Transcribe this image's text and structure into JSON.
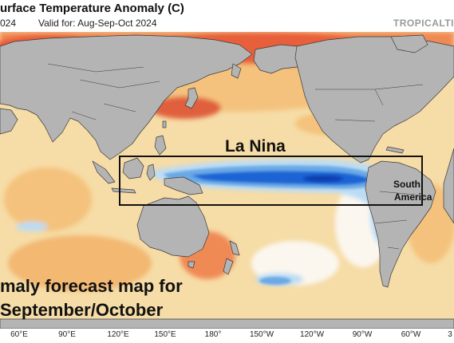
{
  "header": {
    "title": "urface Temperature Anomaly (C)",
    "left_fragment": "024",
    "valid": "Valid for: Aug-Sep-Oct 2024",
    "brand": "TROPICALTI"
  },
  "annotations": {
    "la_nina": "La Nina",
    "south_america_line1": "South",
    "south_america_line2": "America"
  },
  "caption": {
    "line1": "maly forecast map for",
    "line2": "September/October"
  },
  "longitude_labels": [
    "60°E",
    "90°E",
    "120°E",
    "150°E",
    "180°",
    "150°W",
    "120°W",
    "90°W",
    "60°W",
    "3"
  ],
  "colors": {
    "land": "#b4b4b4",
    "warm_light": "#f6dca6",
    "warm": "#f4c27d",
    "warmer": "#f08a55",
    "hot": "#dc4a30",
    "neutral": "#fbf7ef",
    "cool_light": "#bcdcf4",
    "cool": "#6aa9e6",
    "cold": "#1b64d4",
    "coldest": "#0f3fb0",
    "box": "#111111"
  }
}
